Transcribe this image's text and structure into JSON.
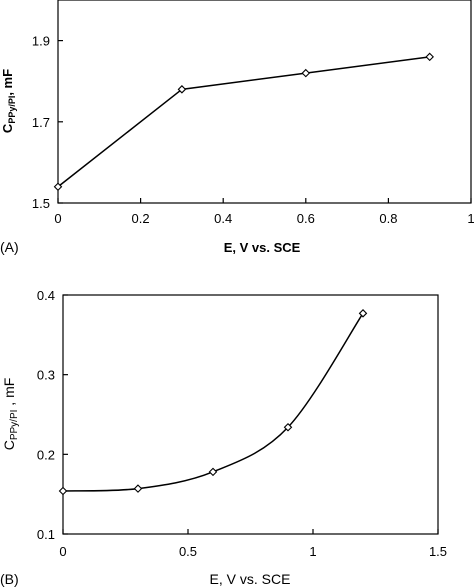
{
  "chart_data": [
    {
      "type": "line",
      "panel_label": "(A)",
      "x": [
        0,
        0.3,
        0.6,
        0.9
      ],
      "values": [
        1.54,
        1.78,
        1.82,
        1.86
      ],
      "xlabel": "E, V vs. SCE",
      "ylabel_main": "C",
      "ylabel_sub": "PPy/PI",
      "ylabel_rest": ", mF",
      "xlim": [
        0,
        1
      ],
      "ylim": [
        1.5,
        2.0
      ],
      "xticks": [
        "0",
        "0.2",
        "0.4",
        "0.6",
        "0.8",
        "1"
      ],
      "yticks": [
        "1.5",
        "1.7",
        "1.9"
      ],
      "grid": false,
      "marker": "diamond"
    },
    {
      "type": "line",
      "panel_label": "(B)",
      "x": [
        0,
        0.3,
        0.6,
        0.9,
        1.2
      ],
      "values": [
        0.154,
        0.157,
        0.178,
        0.234,
        0.377
      ],
      "xlabel": "E, V vs. SCE",
      "ylabel_main": "C",
      "ylabel_sub": "PPy/PI",
      "ylabel_rest": " , mF",
      "xlim": [
        0,
        1.5
      ],
      "ylim": [
        0.1,
        0.4
      ],
      "xticks": [
        "0",
        "0.5",
        "1",
        "1.5"
      ],
      "yticks": [
        "0.1",
        "0.2",
        "0.3",
        "0.4"
      ],
      "grid": false,
      "marker": "diamond",
      "smooth": true
    }
  ]
}
